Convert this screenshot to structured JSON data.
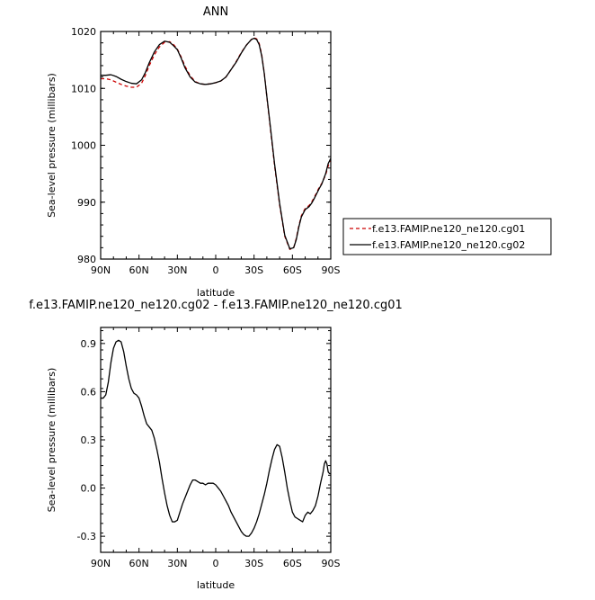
{
  "chart_data": [
    {
      "type": "line",
      "title": "ANN",
      "xlabel": "latitude",
      "ylabel": "Sea-level pressure (millibars)",
      "xlim": [
        90,
        -90
      ],
      "ylim": [
        980,
        1020
      ],
      "xticks": [
        90,
        60,
        30,
        0,
        -30,
        -60,
        -90
      ],
      "xtick_labels": [
        "90N",
        "60N",
        "30N",
        "0",
        "30S",
        "60S",
        "90S"
      ],
      "yticks": [
        980,
        990,
        1000,
        1010,
        1020
      ],
      "ytick_labels": [
        "980",
        "990",
        "1000",
        "1010",
        "1020"
      ],
      "grid": false,
      "legend_position": "right",
      "series": [
        {
          "name": "f.e13.FAMIP.ne120_ne120.cg01",
          "color": "#cc0000",
          "dash": "dashed",
          "x": [
            90,
            86,
            82,
            78,
            74,
            70,
            66,
            62,
            58,
            55,
            52,
            48,
            44,
            40,
            36,
            33,
            30,
            27,
            24,
            20,
            16,
            12,
            8,
            4,
            0,
            -4,
            -8,
            -12,
            -16,
            -20,
            -24,
            -28,
            -30,
            -32,
            -34,
            -36,
            -38,
            -40,
            -43,
            -46,
            -50,
            -54,
            -58,
            -61,
            -63,
            -65,
            -67,
            -70,
            -73,
            -75,
            -77,
            -79,
            -81,
            -83,
            -86,
            -88,
            -90
          ],
          "y": [
            1011.7,
            1011.7,
            1011.5,
            1011.1,
            1010.7,
            1010.4,
            1010.2,
            1010.2,
            1010.9,
            1012.3,
            1014.0,
            1015.9,
            1017.3,
            1018.1,
            1018.2,
            1017.7,
            1016.9,
            1015.5,
            1013.9,
            1012.2,
            1011.2,
            1010.8,
            1010.7,
            1010.8,
            1011.0,
            1011.3,
            1012.0,
            1013.3,
            1014.7,
            1016.3,
            1017.6,
            1018.6,
            1018.9,
            1018.7,
            1017.9,
            1015.9,
            1012.7,
            1008.5,
            1002.5,
            996.5,
            989.5,
            984.0,
            981.7,
            982.0,
            983.6,
            985.8,
            987.6,
            988.9,
            989.4,
            990.0,
            990.8,
            991.7,
            992.6,
            993.3,
            994.8,
            996.4,
            997.6
          ]
        },
        {
          "name": "f.e13.FAMIP.ne120_ne120.cg02",
          "color": "#000000",
          "dash": "solid",
          "x": [
            90,
            86,
            82,
            78,
            74,
            70,
            66,
            62,
            58,
            55,
            52,
            48,
            44,
            40,
            36,
            33,
            30,
            27,
            24,
            20,
            16,
            12,
            8,
            4,
            0,
            -4,
            -8,
            -12,
            -16,
            -20,
            -24,
            -28,
            -30,
            -32,
            -34,
            -36,
            -38,
            -40,
            -43,
            -46,
            -50,
            -54,
            -58,
            -61,
            -63,
            -65,
            -67,
            -70,
            -73,
            -75,
            -77,
            -79,
            -81,
            -83,
            -86,
            -88,
            -90
          ],
          "y": [
            1012.3,
            1012.3,
            1012.4,
            1012.1,
            1011.6,
            1011.2,
            1010.9,
            1010.8,
            1011.5,
            1012.8,
            1014.5,
            1016.4,
            1017.7,
            1018.3,
            1018.1,
            1017.5,
            1016.8,
            1015.3,
            1013.6,
            1012.0,
            1011.1,
            1010.8,
            1010.7,
            1010.8,
            1011.0,
            1011.3,
            1012.0,
            1013.3,
            1014.6,
            1016.2,
            1017.6,
            1018.6,
            1018.8,
            1018.6,
            1017.7,
            1015.7,
            1012.6,
            1008.6,
            1002.8,
            996.8,
            989.8,
            984.2,
            981.8,
            982.0,
            983.4,
            985.6,
            987.4,
            988.7,
            989.2,
            989.8,
            990.6,
            991.5,
            992.4,
            993.2,
            995.0,
            996.8,
            997.7
          ]
        }
      ]
    },
    {
      "type": "line",
      "title": "f.e13.FAMIP.ne120_ne120.cg02 - f.e13.FAMIP.ne120_ne120.cg01",
      "xlabel": "latitude",
      "ylabel": "Sea-level pressure (millibars)",
      "xlim": [
        90,
        -90
      ],
      "ylim": [
        -0.4,
        1.0
      ],
      "xticks": [
        90,
        60,
        30,
        0,
        -30,
        -60,
        -90
      ],
      "xtick_labels": [
        "90N",
        "60N",
        "30N",
        "0",
        "30S",
        "60S",
        "90S"
      ],
      "yticks": [
        -0.3,
        0.0,
        0.3,
        0.6,
        0.9
      ],
      "ytick_labels": [
        "-0.3",
        "0.0",
        "0.3",
        "0.6",
        "0.9"
      ],
      "grid": false,
      "series": [
        {
          "color": "#000000",
          "dash": "solid",
          "x": [
            90,
            88,
            86,
            84,
            82,
            80,
            78,
            76,
            74,
            72,
            70,
            68,
            66,
            64,
            62,
            60,
            58,
            56,
            54,
            52,
            50,
            48,
            46,
            44,
            42,
            40,
            38,
            36,
            34,
            32,
            30,
            28,
            26,
            24,
            22,
            20,
            18,
            16,
            14,
            12,
            10,
            8,
            6,
            4,
            2,
            0,
            -2,
            -4,
            -6,
            -8,
            -10,
            -12,
            -14,
            -16,
            -18,
            -20,
            -22,
            -24,
            -26,
            -28,
            -30,
            -32,
            -34,
            -36,
            -38,
            -40,
            -42,
            -44,
            -46,
            -48,
            -50,
            -52,
            -54,
            -56,
            -58,
            -60,
            -62,
            -64,
            -66,
            -68,
            -70,
            -72,
            -74,
            -76,
            -78,
            -80,
            -82,
            -84,
            -85,
            -86,
            -87,
            -88,
            -89,
            -90
          ],
          "y": [
            0.56,
            0.56,
            0.58,
            0.66,
            0.78,
            0.87,
            0.91,
            0.92,
            0.91,
            0.85,
            0.76,
            0.68,
            0.62,
            0.59,
            0.58,
            0.56,
            0.51,
            0.45,
            0.4,
            0.38,
            0.36,
            0.31,
            0.24,
            0.16,
            0.06,
            -0.03,
            -0.11,
            -0.17,
            -0.21,
            -0.21,
            -0.2,
            -0.15,
            -0.1,
            -0.06,
            -0.02,
            0.02,
            0.05,
            0.05,
            0.04,
            0.03,
            0.03,
            0.02,
            0.03,
            0.03,
            0.03,
            0.02,
            0.0,
            -0.02,
            -0.05,
            -0.08,
            -0.11,
            -0.15,
            -0.18,
            -0.21,
            -0.24,
            -0.27,
            -0.29,
            -0.3,
            -0.3,
            -0.28,
            -0.25,
            -0.21,
            -0.16,
            -0.1,
            -0.04,
            0.03,
            0.11,
            0.18,
            0.24,
            0.27,
            0.26,
            0.19,
            0.1,
            0.0,
            -0.08,
            -0.15,
            -0.18,
            -0.19,
            -0.2,
            -0.21,
            -0.17,
            -0.15,
            -0.16,
            -0.14,
            -0.11,
            -0.05,
            0.03,
            0.1,
            0.15,
            0.17,
            0.15,
            0.1,
            0.09,
            0.09
          ]
        }
      ]
    }
  ]
}
